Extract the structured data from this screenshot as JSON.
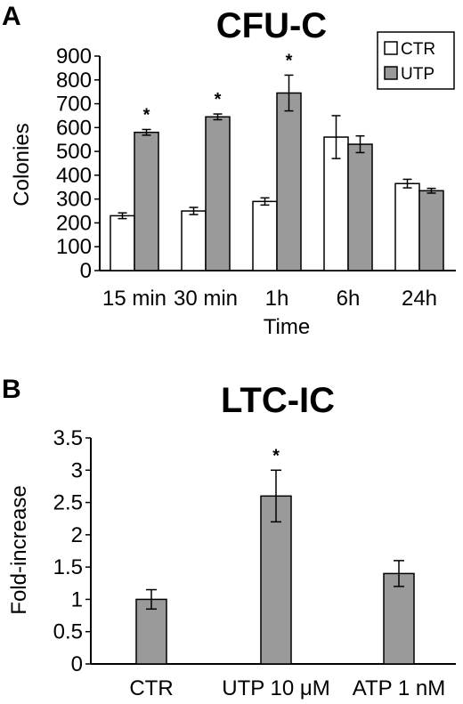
{
  "chart_data": [
    {
      "type": "bar",
      "panel": "A",
      "title": "CFU-C",
      "xlabel": "Time",
      "ylabel": "Colonies",
      "ylim": [
        0,
        900
      ],
      "yticks": [
        0,
        100,
        200,
        300,
        400,
        500,
        600,
        700,
        800,
        900
      ],
      "categories": [
        "15 min",
        "30 min",
        "1h",
        "6h",
        "24h"
      ],
      "series": [
        {
          "name": "CTR",
          "color": "#ffffff",
          "values": [
            230,
            250,
            290,
            560,
            365
          ],
          "errors": [
            12,
            15,
            15,
            90,
            18
          ]
        },
        {
          "name": "UTP",
          "color": "#9a9a9a",
          "values": [
            580,
            645,
            745,
            530,
            335
          ],
          "errors": [
            12,
            12,
            75,
            35,
            10
          ]
        }
      ],
      "significance": [
        "*",
        "*",
        "*",
        "",
        ""
      ],
      "legend_position": "top-right",
      "grid": false
    },
    {
      "type": "bar",
      "panel": "B",
      "title": "LTC-IC",
      "xlabel": "",
      "ylabel": "Fold-increase",
      "ylim": [
        0,
        3.5
      ],
      "yticks": [
        "0",
        "0.5",
        "1",
        "1.5",
        "2",
        "2.5",
        "3",
        "3.5"
      ],
      "categories": [
        "CTR",
        "UTP 10 μM",
        "ATP 1 nM"
      ],
      "series": [
        {
          "color": "#9a9a9a",
          "values": [
            1.0,
            2.6,
            1.4
          ],
          "errors": [
            0.15,
            0.4,
            0.2
          ]
        }
      ],
      "significance": [
        "",
        "*",
        ""
      ],
      "grid": false
    }
  ]
}
